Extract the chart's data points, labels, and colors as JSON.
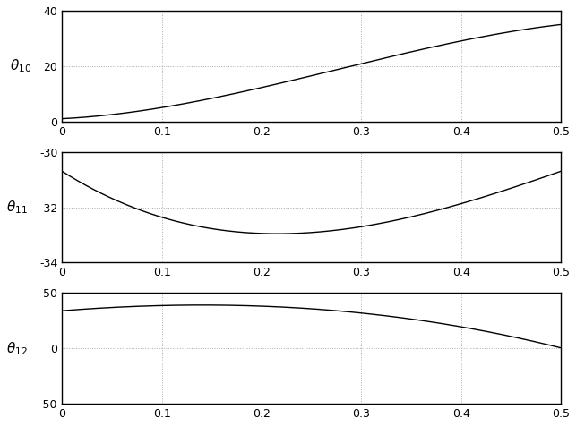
{
  "xlim": [
    0,
    0.5
  ],
  "xticks": [
    0,
    0.1,
    0.2,
    0.3,
    0.4,
    0.5
  ],
  "plot1": {
    "ylim": [
      0,
      40
    ],
    "yticks": [
      0,
      20,
      40
    ],
    "ylabel": "$\\theta_{10}$",
    "control_points": [
      1.0,
      4.0,
      28.0,
      35.0
    ]
  },
  "plot2": {
    "ylim": [
      -34,
      -30
    ],
    "yticks": [
      -34,
      -32,
      -30
    ],
    "ylabel": "$\\theta_{11}$",
    "control_points": [
      -30.7,
      -34.5,
      -32.8,
      -30.7
    ]
  },
  "plot3": {
    "ylim": [
      -50,
      50
    ],
    "yticks": [
      -50,
      0,
      50
    ],
    "ylabel": "$\\theta_{12}$",
    "control_points": [
      34.0,
      46.0,
      38.0,
      0.5
    ]
  },
  "line_color": "#000000",
  "line_width": 1.0,
  "grid_color": "#aaaaaa",
  "grid_linestyle": ":",
  "grid_linewidth": 0.7,
  "background_color": "#ffffff",
  "tick_fontsize": 9,
  "label_fontsize": 11,
  "figsize": [
    6.43,
    4.76
  ],
  "dpi": 100
}
